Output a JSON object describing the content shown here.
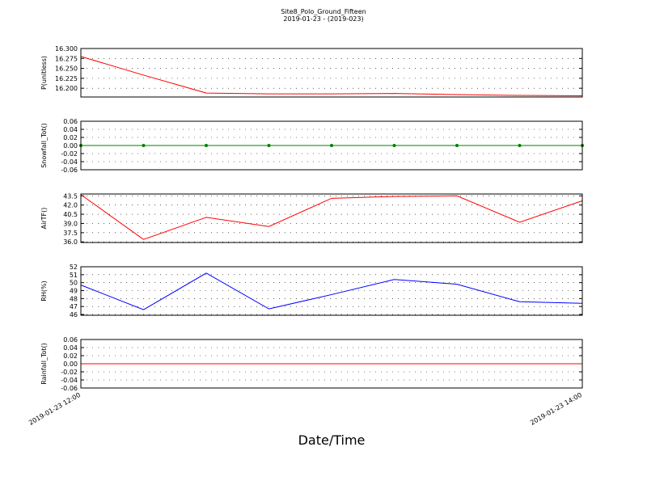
{
  "chart_data": [
    {
      "type": "line",
      "title": "Site8_Polo_Ground_Fifteen",
      "subtitle": "2019-01-23 - (2019-023)",
      "ylabel": "P(unitless)",
      "x": [
        "2019-01-23 12:00",
        "2019-01-23 12:15",
        "2019-01-23 12:30",
        "2019-01-23 12:45",
        "2019-01-23 13:00",
        "2019-01-23 13:15",
        "2019-01-23 13:30",
        "2019-01-23 13:45",
        "2019-01-23 14:00"
      ],
      "xlim": [
        "2019-01-23 12:00",
        "2019-01-23 14:00"
      ],
      "series": [
        {
          "name": "P",
          "color": "#ff0000",
          "values": [
            16.28,
            16.233,
            16.188,
            16.186,
            16.186,
            16.187,
            16.184,
            16.182,
            16.181
          ]
        }
      ],
      "ylim": [
        16.178,
        16.3
      ],
      "yticks": [
        {
          "value": 16.2,
          "label": "16.200"
        },
        {
          "value": 16.225,
          "label": "16.225"
        },
        {
          "value": 16.25,
          "label": "16.250"
        },
        {
          "value": 16.275,
          "label": "16.275"
        },
        {
          "value": 16.3,
          "label": "16.300"
        }
      ],
      "grid": true
    },
    {
      "type": "line",
      "ylabel": "Snowfall_Tot()",
      "markers": true,
      "x": [
        "2019-01-23 12:00",
        "2019-01-23 12:15",
        "2019-01-23 12:30",
        "2019-01-23 12:45",
        "2019-01-23 13:00",
        "2019-01-23 13:15",
        "2019-01-23 13:30",
        "2019-01-23 13:45",
        "2019-01-23 14:00"
      ],
      "xlim": [
        "2019-01-23 12:00",
        "2019-01-23 14:00"
      ],
      "series": [
        {
          "name": "Snowfall_Tot",
          "color": "#008000",
          "values": [
            0,
            0,
            0,
            0,
            0,
            0,
            0,
            0,
            0
          ]
        }
      ],
      "ylim": [
        -0.06,
        0.06
      ],
      "yticks": [
        -0.06,
        -0.04,
        -0.02,
        {
          "value": 0,
          "label": "0.00"
        },
        0.02,
        0.04,
        0.06
      ],
      "grid": true
    },
    {
      "type": "line",
      "ylabel": "AirTF()",
      "x": [
        "2019-01-23 12:00",
        "2019-01-23 12:15",
        "2019-01-23 12:30",
        "2019-01-23 12:45",
        "2019-01-23 13:00",
        "2019-01-23 13:15",
        "2019-01-23 13:30",
        "2019-01-23 13:45",
        "2019-01-23 14:00"
      ],
      "xlim": [
        "2019-01-23 12:00",
        "2019-01-23 14:00"
      ],
      "series": [
        {
          "name": "AirTF",
          "color": "#ff0000",
          "values": [
            43.7,
            36.4,
            40.0,
            38.5,
            43.1,
            43.4,
            43.5,
            39.2,
            42.7
          ]
        }
      ],
      "ylim": [
        35.9,
        43.8
      ],
      "yticks": [
        {
          "value": 36,
          "label": "36.0"
        },
        37.5,
        {
          "value": 39,
          "label": "39.0"
        },
        40.5,
        {
          "value": 42,
          "label": "42.0"
        },
        43.5
      ],
      "grid": true
    },
    {
      "type": "line",
      "ylabel": "RH(%)",
      "x": [
        "2019-01-23 12:00",
        "2019-01-23 12:15",
        "2019-01-23 12:30",
        "2019-01-23 12:45",
        "2019-01-23 13:00",
        "2019-01-23 13:15",
        "2019-01-23 13:30",
        "2019-01-23 13:45",
        "2019-01-23 14:00"
      ],
      "xlim": [
        "2019-01-23 12:00",
        "2019-01-23 14:00"
      ],
      "series": [
        {
          "name": "RH",
          "color": "#0000ff",
          "values": [
            49.7,
            46.6,
            51.2,
            46.7,
            48.5,
            50.4,
            49.8,
            47.6,
            47.4
          ]
        }
      ],
      "ylim": [
        45.9,
        52
      ],
      "yticks": [
        46,
        47,
        48,
        49,
        50,
        51,
        52
      ],
      "grid": true
    },
    {
      "type": "line",
      "ylabel": "Rainfall_Tot()",
      "xlabel": "Date/Time",
      "x": [
        "2019-01-23 12:00",
        "2019-01-23 12:15",
        "2019-01-23 12:30",
        "2019-01-23 12:45",
        "2019-01-23 13:00",
        "2019-01-23 13:15",
        "2019-01-23 13:30",
        "2019-01-23 13:45",
        "2019-01-23 14:00"
      ],
      "xlim": [
        "2019-01-23 12:00",
        "2019-01-23 14:00"
      ],
      "xticks": [
        "2019-01-23 12:00",
        "2019-01-23 14:00"
      ],
      "series": [
        {
          "name": "Rainfall_Tot",
          "color": "#ff0000",
          "values": [
            0,
            0,
            0,
            0,
            0,
            0,
            0,
            0,
            0
          ]
        }
      ],
      "ylim": [
        -0.06,
        0.06
      ],
      "yticks": [
        -0.06,
        -0.04,
        -0.02,
        {
          "value": 0,
          "label": "0.00"
        },
        0.02,
        0.04,
        0.06
      ],
      "grid": true
    }
  ]
}
